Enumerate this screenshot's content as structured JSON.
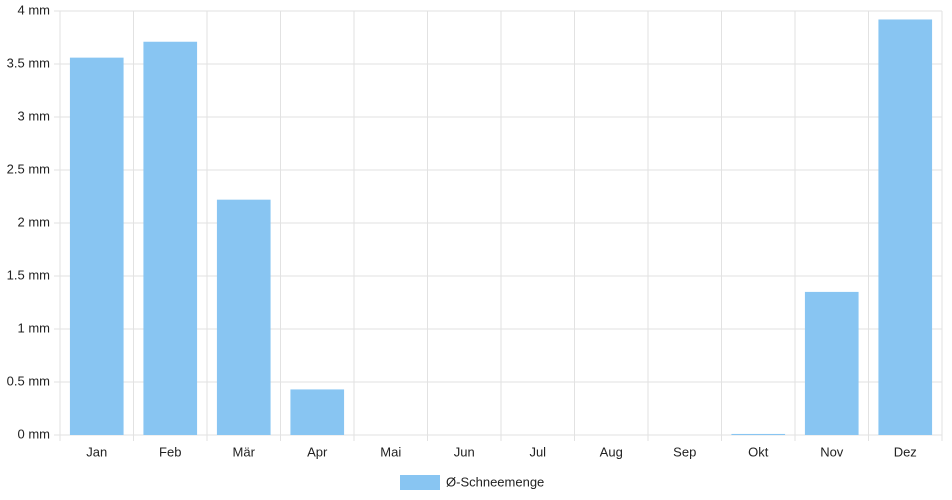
{
  "chart_data": {
    "type": "bar",
    "categories": [
      "Jan",
      "Feb",
      "Mär",
      "Apr",
      "Mai",
      "Jun",
      "Jul",
      "Aug",
      "Sep",
      "Okt",
      "Nov",
      "Dez"
    ],
    "series": [
      {
        "name": "Ø-Schneemenge",
        "color": "#88c5f2",
        "values": [
          3.56,
          3.71,
          2.22,
          0.43,
          0,
          0,
          0,
          0,
          0,
          0.01,
          1.35,
          3.92
        ]
      }
    ],
    "ylim": [
      0,
      4
    ],
    "yticks": [
      {
        "value": 0,
        "label": "0 mm"
      },
      {
        "value": 0.5,
        "label": "0.5 mm"
      },
      {
        "value": 1,
        "label": "1 mm"
      },
      {
        "value": 1.5,
        "label": "1.5 mm"
      },
      {
        "value": 2,
        "label": "2 mm"
      },
      {
        "value": 2.5,
        "label": "2.5 mm"
      },
      {
        "value": 3,
        "label": "3 mm"
      },
      {
        "value": 3.5,
        "label": "3.5 mm"
      },
      {
        "value": 4,
        "label": "4 mm"
      }
    ],
    "grid": true,
    "legend": "bottom"
  }
}
